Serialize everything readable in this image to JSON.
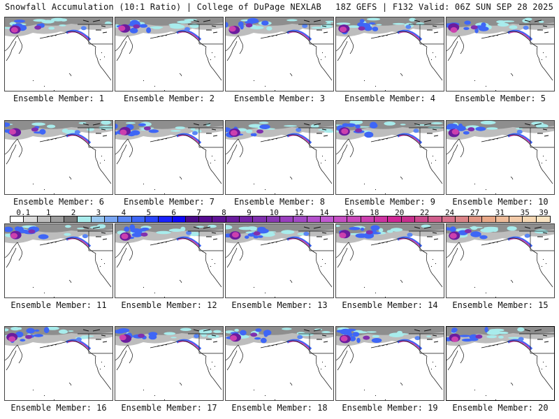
{
  "header": {
    "title_left": "Snowfall Accumulation (10:1 Ratio) | College of DuPage NEXLAB",
    "title_right": "18Z GEFS | F132 Valid: 06Z SUN SEP 28 2025"
  },
  "colorbar": {
    "units_implied": "inches",
    "labels": [
      "0.1",
      "1",
      "2",
      "3",
      "4",
      "5",
      "6",
      "7",
      "8",
      "9",
      "10",
      "12",
      "14",
      "16",
      "18",
      "20",
      "22",
      "24",
      "27",
      "31",
      "35",
      "39"
    ],
    "colors": [
      "#ffffff",
      "#dcdcdc",
      "#bdbdbd",
      "#9e9e9e",
      "#7a7a7a",
      "#a8ecec",
      "#98c8f0",
      "#7aa6f2",
      "#5a86f4",
      "#3e66f6",
      "#2a46fa",
      "#1a22fc",
      "#0e08f8",
      "#4a0a8a",
      "#560c90",
      "#5f1496",
      "#6a1c9e",
      "#7624a6",
      "#8030ae",
      "#8a38b4",
      "#9a40be",
      "#a44ac6",
      "#b452cc",
      "#c25ad2",
      "#c650c4",
      "#ca4aba",
      "#cc40ae",
      "#ce34a2",
      "#d02896",
      "#c8308e",
      "#cc4a8c",
      "#d05e8c",
      "#d6728c",
      "#dc8488",
      "#e29684",
      "#e8a888",
      "#eebc9a",
      "#f2caa8",
      "#f6d8b4",
      "#fae4c2"
    ]
  },
  "members": [
    {
      "label": "Ensemble Member: 1",
      "number": 1
    },
    {
      "label": "Ensemble Member: 2",
      "number": 2
    },
    {
      "label": "Ensemble Member: 3",
      "number": 3
    },
    {
      "label": "Ensemble Member: 4",
      "number": 4
    },
    {
      "label": "Ensemble Member: 5",
      "number": 5
    },
    {
      "label": "Ensemble Member: 6",
      "number": 6
    },
    {
      "label": "Ensemble Member: 7",
      "number": 7
    },
    {
      "label": "Ensemble Member: 8",
      "number": 8
    },
    {
      "label": "Ensemble Member: 9",
      "number": 9
    },
    {
      "label": "Ensemble Member: 10",
      "number": 10
    },
    {
      "label": "Ensemble Member: 11",
      "number": 11
    },
    {
      "label": "Ensemble Member: 12",
      "number": 12
    },
    {
      "label": "Ensemble Member: 13",
      "number": 13
    },
    {
      "label": "Ensemble Member: 14",
      "number": 14
    },
    {
      "label": "Ensemble Member: 15",
      "number": 15
    },
    {
      "label": "Ensemble Member: 16",
      "number": 16
    },
    {
      "label": "Ensemble Member: 17",
      "number": 17
    },
    {
      "label": "Ensemble Member: 18",
      "number": 18
    },
    {
      "label": "Ensemble Member: 19",
      "number": 19
    },
    {
      "label": "Ensemble Member: 20",
      "number": 20
    }
  ],
  "map": {
    "region": "North Pacific / Alaska / Western North America",
    "highlighted_member": 20
  }
}
